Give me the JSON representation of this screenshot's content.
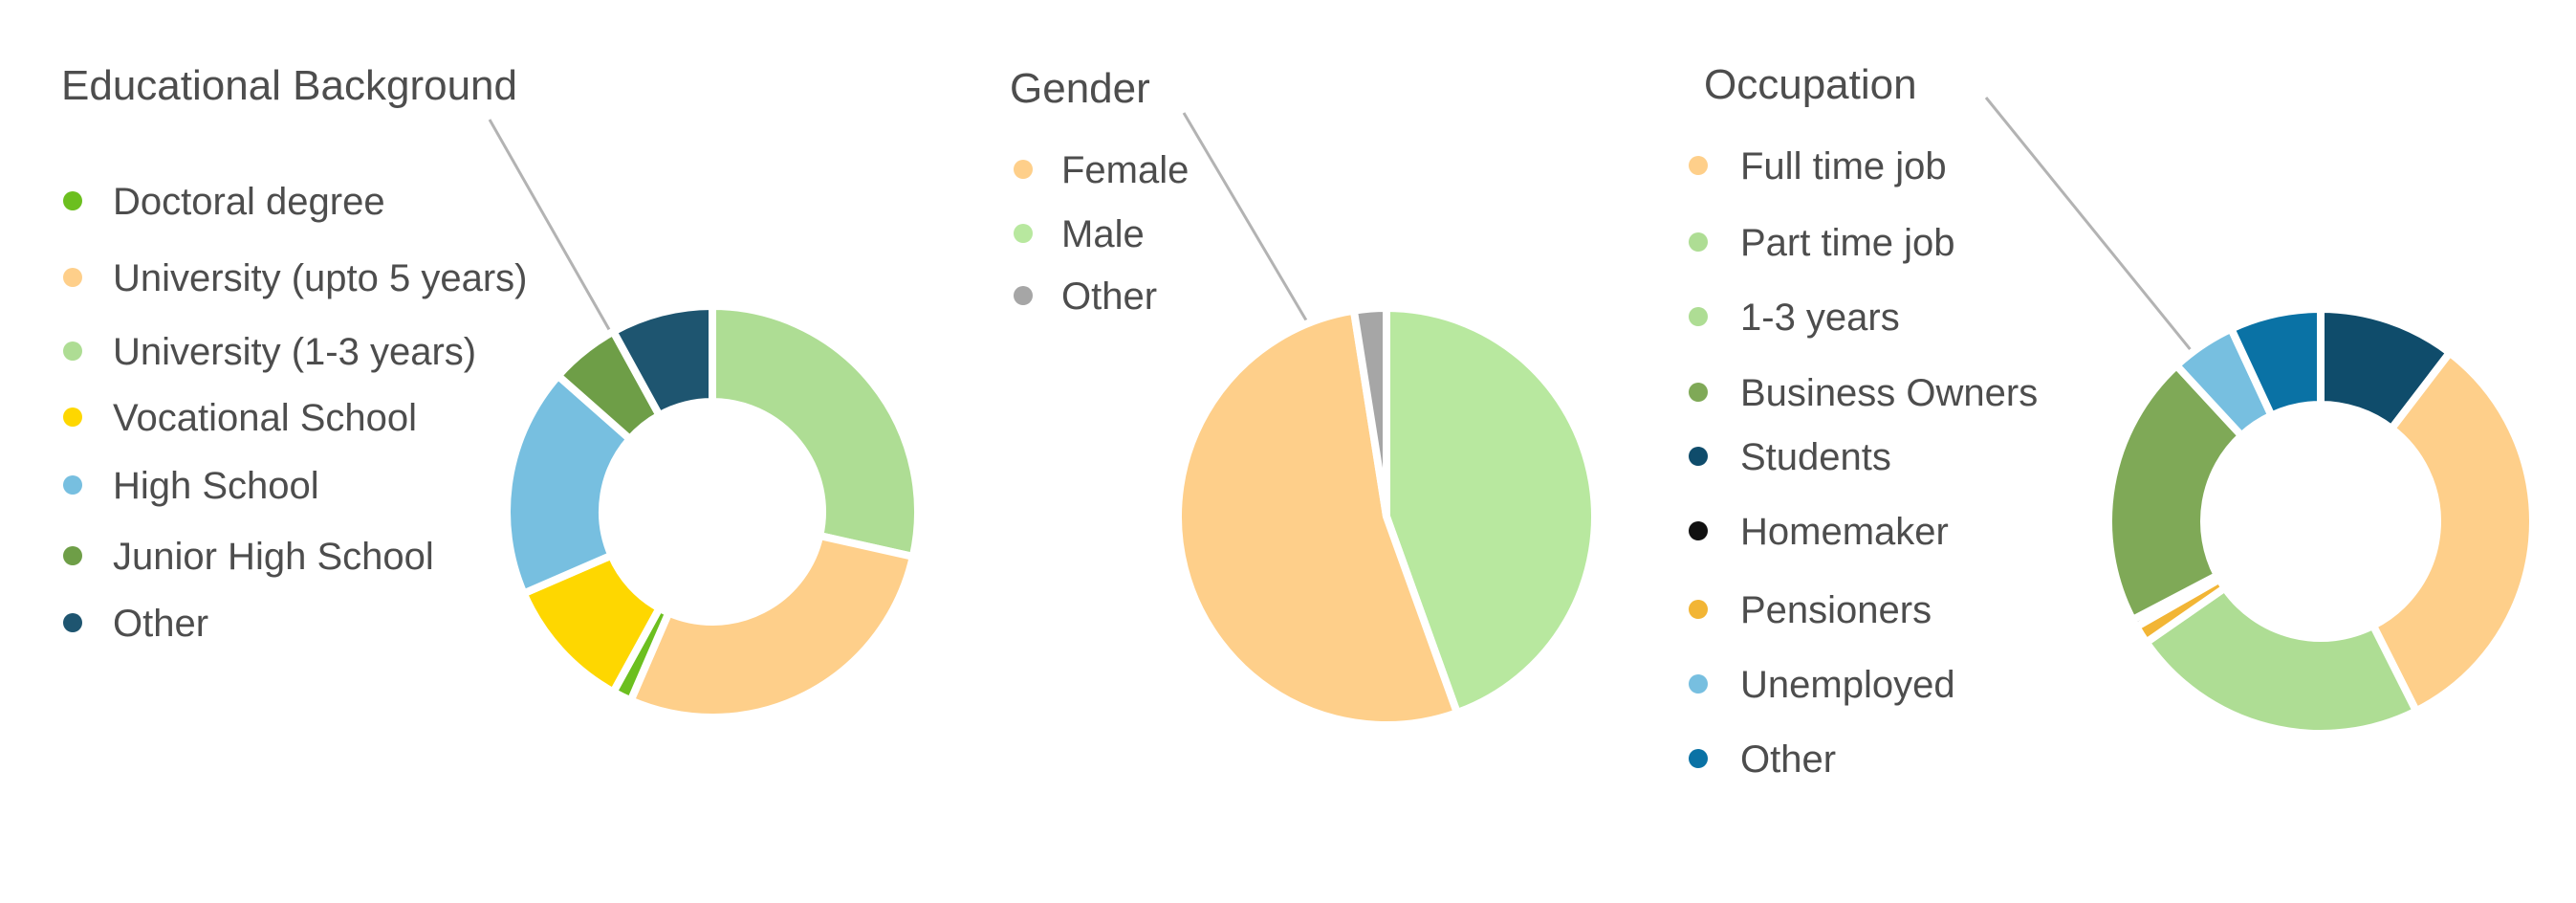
{
  "chart_data": [
    {
      "type": "pie",
      "variant": "donut",
      "title": "Educational Background",
      "categories": [
        "Doctoral degree",
        "University (upto 5 years)",
        "University (1-3 years)",
        "Vocational School",
        "High School",
        "Junior High School",
        "Other"
      ],
      "values": [
        1.5,
        28,
        28.5,
        10.5,
        18,
        5.5,
        8
      ],
      "colors": [
        "#6cbf1f",
        "#fecf8a",
        "#aedd94",
        "#fed700",
        "#77bfe0",
        "#6e9e47",
        "#1e5570"
      ],
      "clockwise_from_top": [
        "University (1-3 years)",
        "University (upto 5 years)",
        "Doctoral degree",
        "Vocational School",
        "High School",
        "Junior High School",
        "Other"
      ]
    },
    {
      "type": "pie",
      "title": "Gender",
      "categories": [
        "Female",
        "Male",
        "Other"
      ],
      "values": [
        53,
        44.5,
        2.5
      ],
      "colors": [
        "#fecf8a",
        "#b8e89f",
        "#a6a6a6"
      ],
      "clockwise_from_top": [
        "Male",
        "Female",
        "Other"
      ]
    },
    {
      "type": "pie",
      "variant": "donut",
      "title": "Occupation",
      "categories": [
        "Full time job",
        "Part time job",
        "1-3 years",
        "Business Owners",
        "Students",
        "Homemaker",
        "Pensioners",
        "Unemployed",
        "Other"
      ],
      "values": [
        0,
        0,
        23,
        21,
        10.5,
        0.6,
        1.4,
        5,
        7
      ],
      "colors": [
        "#fecf8a",
        "#aedd94",
        "#aedd94",
        "#7fa957",
        "#0f4c6b",
        "#111111",
        "#f2b535",
        "#77bfe0",
        "#0a72a5"
      ],
      "extra_slices": [
        {
          "label": "Full time job",
          "value": 32.5
        }
      ],
      "clockwise_from_top": [
        "Students",
        "Full time job",
        "1-3 years",
        "Pensioners",
        "Homemaker",
        "Business Owners",
        "Unemployed",
        "Other"
      ]
    }
  ]
}
